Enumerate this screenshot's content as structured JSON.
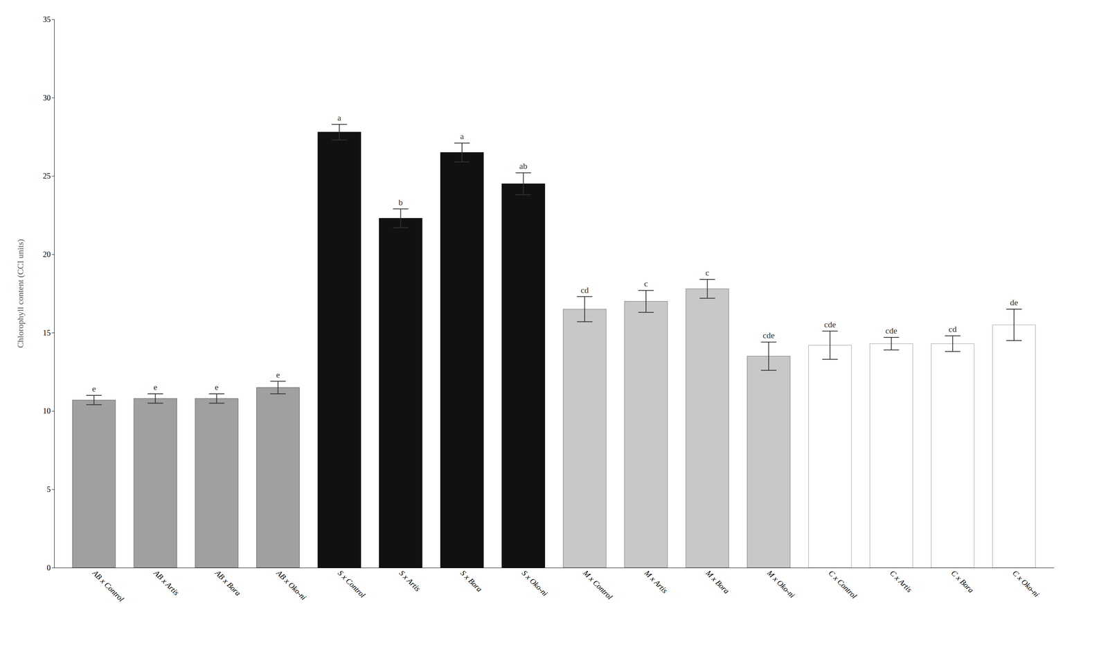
{
  "chart_data": {
    "type": "bar",
    "categories": [
      "AB x Control",
      "AB x Artis",
      "AB x Bora",
      "AB x Oko-ni",
      "S x Control",
      "S x Artis",
      "S x Bora",
      "S x Oko-ni",
      "M x Control",
      "M x Artis",
      "M x Bora",
      "M x Oko-ni",
      "C x Control",
      "C x Artis",
      "C x Bora",
      "C x Oko-ni"
    ],
    "values": [
      10.7,
      10.8,
      10.8,
      11.5,
      27.8,
      22.3,
      26.5,
      24.5,
      16.5,
      17.0,
      17.8,
      13.5,
      14.2,
      14.3,
      14.3,
      15.5
    ],
    "errors": [
      0.3,
      0.3,
      0.3,
      0.4,
      0.5,
      0.6,
      0.6,
      0.7,
      0.8,
      0.7,
      0.6,
      0.9,
      0.9,
      0.4,
      0.5,
      1.0
    ],
    "annotations": [
      "e",
      "e",
      "e",
      "e",
      "a",
      "b",
      "a",
      "ab",
      "cd",
      "c",
      "c",
      "cde",
      "cde",
      "cde",
      "cd",
      "de"
    ],
    "colors": [
      "#a0a0a0",
      "#a0a0a0",
      "#a0a0a0",
      "#a0a0a0",
      "#111111",
      "#111111",
      "#111111",
      "#111111",
      "#c8c8c8",
      "#c8c8c8",
      "#c8c8c8",
      "#c8c8c8",
      "#ffffff",
      "#ffffff",
      "#ffffff",
      "#ffffff"
    ],
    "ylabel": "Chlorophyll content (CCI units)",
    "ylim": [
      0,
      35
    ],
    "yticks": [
      0,
      5,
      10,
      15,
      20,
      25,
      30,
      35
    ],
    "grid": false
  }
}
